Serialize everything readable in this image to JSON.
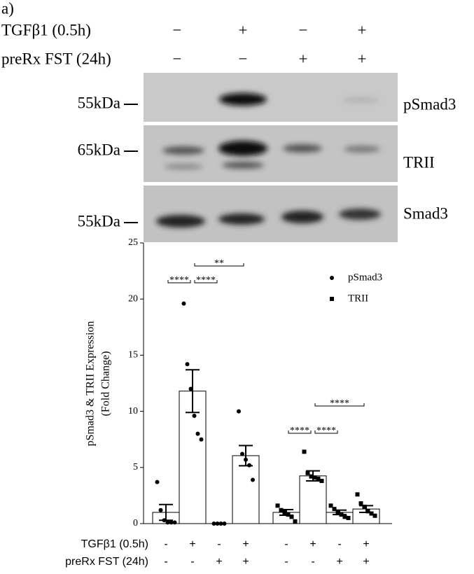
{
  "blot": {
    "panel_label": "a)",
    "treatments": [
      {
        "label": "TGFβ1 (0.5h)",
        "signs": [
          "−",
          "+",
          "−",
          "+"
        ]
      },
      {
        "label": "preRx FST (24h)",
        "signs": [
          "−",
          "−",
          "+",
          "+"
        ]
      }
    ],
    "rows": [
      {
        "kda": "55kDa",
        "name": "pSmad3"
      },
      {
        "kda": "65kDa",
        "name": "TRII"
      },
      {
        "kda": "55kDa",
        "name": "Smad3"
      }
    ]
  },
  "chart_data": {
    "type": "bar",
    "y_label": [
      "pSmad3 & TRII Expression",
      "(Fold Change)"
    ],
    "ylim": [
      0,
      25
    ],
    "yticks": [
      0,
      5,
      10,
      15,
      20,
      25
    ],
    "series": [
      {
        "name": "pSmad3",
        "marker": "circle",
        "color": "#000000",
        "values": [
          1.0,
          11.8,
          0.0,
          6.05
        ],
        "errors": [
          0.7,
          1.9,
          0.0,
          0.9
        ],
        "points": [
          [
            3.7,
            1.2,
            0.3,
            0.1,
            0.1,
            0.1
          ],
          [
            19.6,
            14.2,
            12.0,
            9.6,
            8.0,
            7.5
          ],
          [
            0,
            0,
            0,
            0
          ],
          [
            10.0,
            6.2,
            5.7,
            5.2,
            3.9
          ]
        ]
      },
      {
        "name": "TRII",
        "marker": "square",
        "color": "#000000",
        "values": [
          1.0,
          4.25,
          1.0,
          1.3
        ],
        "errors": [
          0.25,
          0.45,
          0.2,
          0.3
        ],
        "points": [
          [
            1.6,
            1.2,
            1.0,
            0.8,
            0.6,
            0.2
          ],
          [
            6.4,
            4.5,
            4.2,
            4.1,
            4.0,
            3.8
          ],
          [
            1.6,
            1.3,
            1.0,
            0.8,
            0.6,
            0.5
          ],
          [
            2.6,
            1.8,
            1.5,
            1.1,
            0.9,
            0.7
          ]
        ]
      }
    ],
    "significance": [
      "****",
      "****",
      "**",
      "****",
      "****",
      "****"
    ],
    "conditions": [
      {
        "label": "TGFβ1 (0.5h)",
        "signs": [
          "-",
          "+",
          "-",
          "+",
          "-",
          "+",
          "-",
          "+"
        ]
      },
      {
        "label": "preRx FST (24h)",
        "signs": [
          "-",
          "-",
          "+",
          "+",
          "-",
          "-",
          "+",
          "+"
        ]
      }
    ]
  }
}
